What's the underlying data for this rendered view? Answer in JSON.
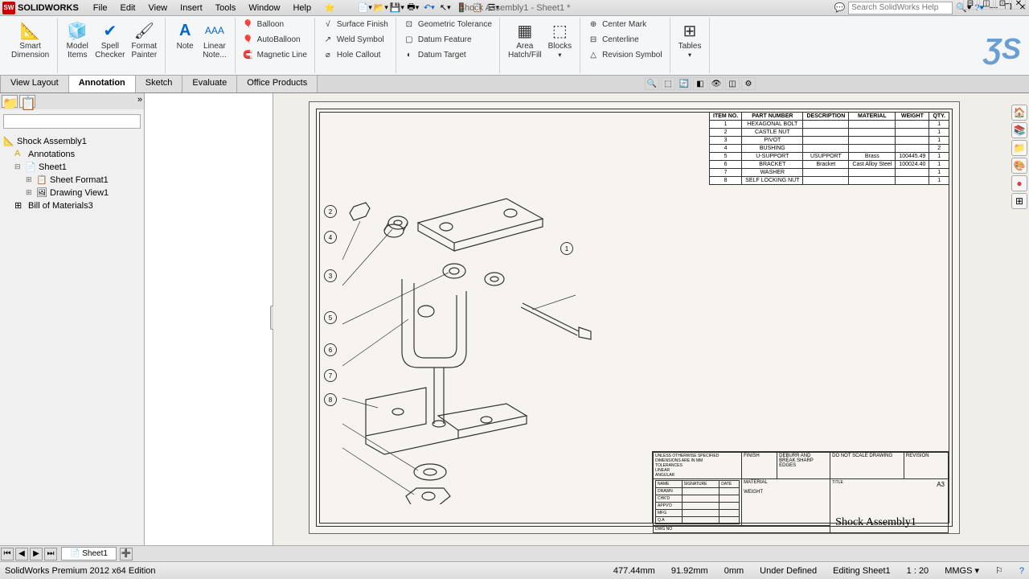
{
  "app": {
    "logo": "SW",
    "name": "SOLIDWORKS",
    "docTitle": "Shock Assembly1 - Sheet1 *",
    "searchPlaceholder": "Search SolidWorks Help"
  },
  "menu": [
    "File",
    "Edit",
    "View",
    "Insert",
    "Tools",
    "Window",
    "Help"
  ],
  "ribbon": {
    "smartDim": "Smart\nDimension",
    "modelItems": "Model\nItems",
    "spellCheck": "Spell\nChecker",
    "formatPainter": "Format\nPainter",
    "note": "Note",
    "linearNote": "Linear\nNote...",
    "balloon": "Balloon",
    "autoBalloon": "AutoBalloon",
    "magneticLine": "Magnetic Line",
    "surfaceFinish": "Surface Finish",
    "weldSymbol": "Weld Symbol",
    "holeCallout": "Hole Callout",
    "geoTol": "Geometric Tolerance",
    "datumFeature": "Datum Feature",
    "datumTarget": "Datum Target",
    "areaHatch": "Area\nHatch/Fill",
    "blocks": "Blocks",
    "centerMark": "Center Mark",
    "centerline": "Centerline",
    "revisionSymbol": "Revision Symbol",
    "tables": "Tables"
  },
  "tabs": [
    "View Layout",
    "Annotation",
    "Sketch",
    "Evaluate",
    "Office Products"
  ],
  "tree": {
    "root": "Shock Assembly1",
    "annotations": "Annotations",
    "sheet": "Sheet1",
    "sheetFormat": "Sheet Format1",
    "drawingView": "Drawing View1",
    "bom": "Bill of Materials3"
  },
  "bom": {
    "headers": [
      "ITEM NO.",
      "PART NUMBER",
      "DESCRIPTION",
      "MATERIAL",
      "WEIGHT",
      "QTY."
    ],
    "rows": [
      [
        "1",
        "HEXAGONAL BOLT",
        "",
        "",
        "",
        "1"
      ],
      [
        "2",
        "CASTLE NUT",
        "",
        "",
        "",
        "1"
      ],
      [
        "3",
        "PIVOT",
        "",
        "",
        "",
        "1"
      ],
      [
        "4",
        "BUSHING",
        "",
        "",
        "",
        "2"
      ],
      [
        "5",
        "U-SUPPORT",
        "USUPPORT",
        "Brass",
        "100445.49",
        "1"
      ],
      [
        "6",
        "BRACKET",
        "Bracket",
        "Cast Alloy Steel",
        "100024.40",
        "1"
      ],
      [
        "7",
        "WASHER",
        "",
        "",
        "",
        "1"
      ],
      [
        "8",
        "SELF LOCKING NUT",
        "",
        "",
        "",
        "1"
      ]
    ]
  },
  "titleBlock": {
    "drawingName": "Shock Assembly1",
    "size": "A3"
  },
  "sheetTab": "Sheet1",
  "status": {
    "edition": "SolidWorks Premium 2012 x64 Edition",
    "x": "477.44mm",
    "y": "91.92mm",
    "z": "0mm",
    "defined": "Under Defined",
    "editing": "Editing Sheet1",
    "scale": "1 : 20",
    "units": "MMGS"
  },
  "colors": {
    "accent": "#c00",
    "paper": "#f7f4f0"
  }
}
